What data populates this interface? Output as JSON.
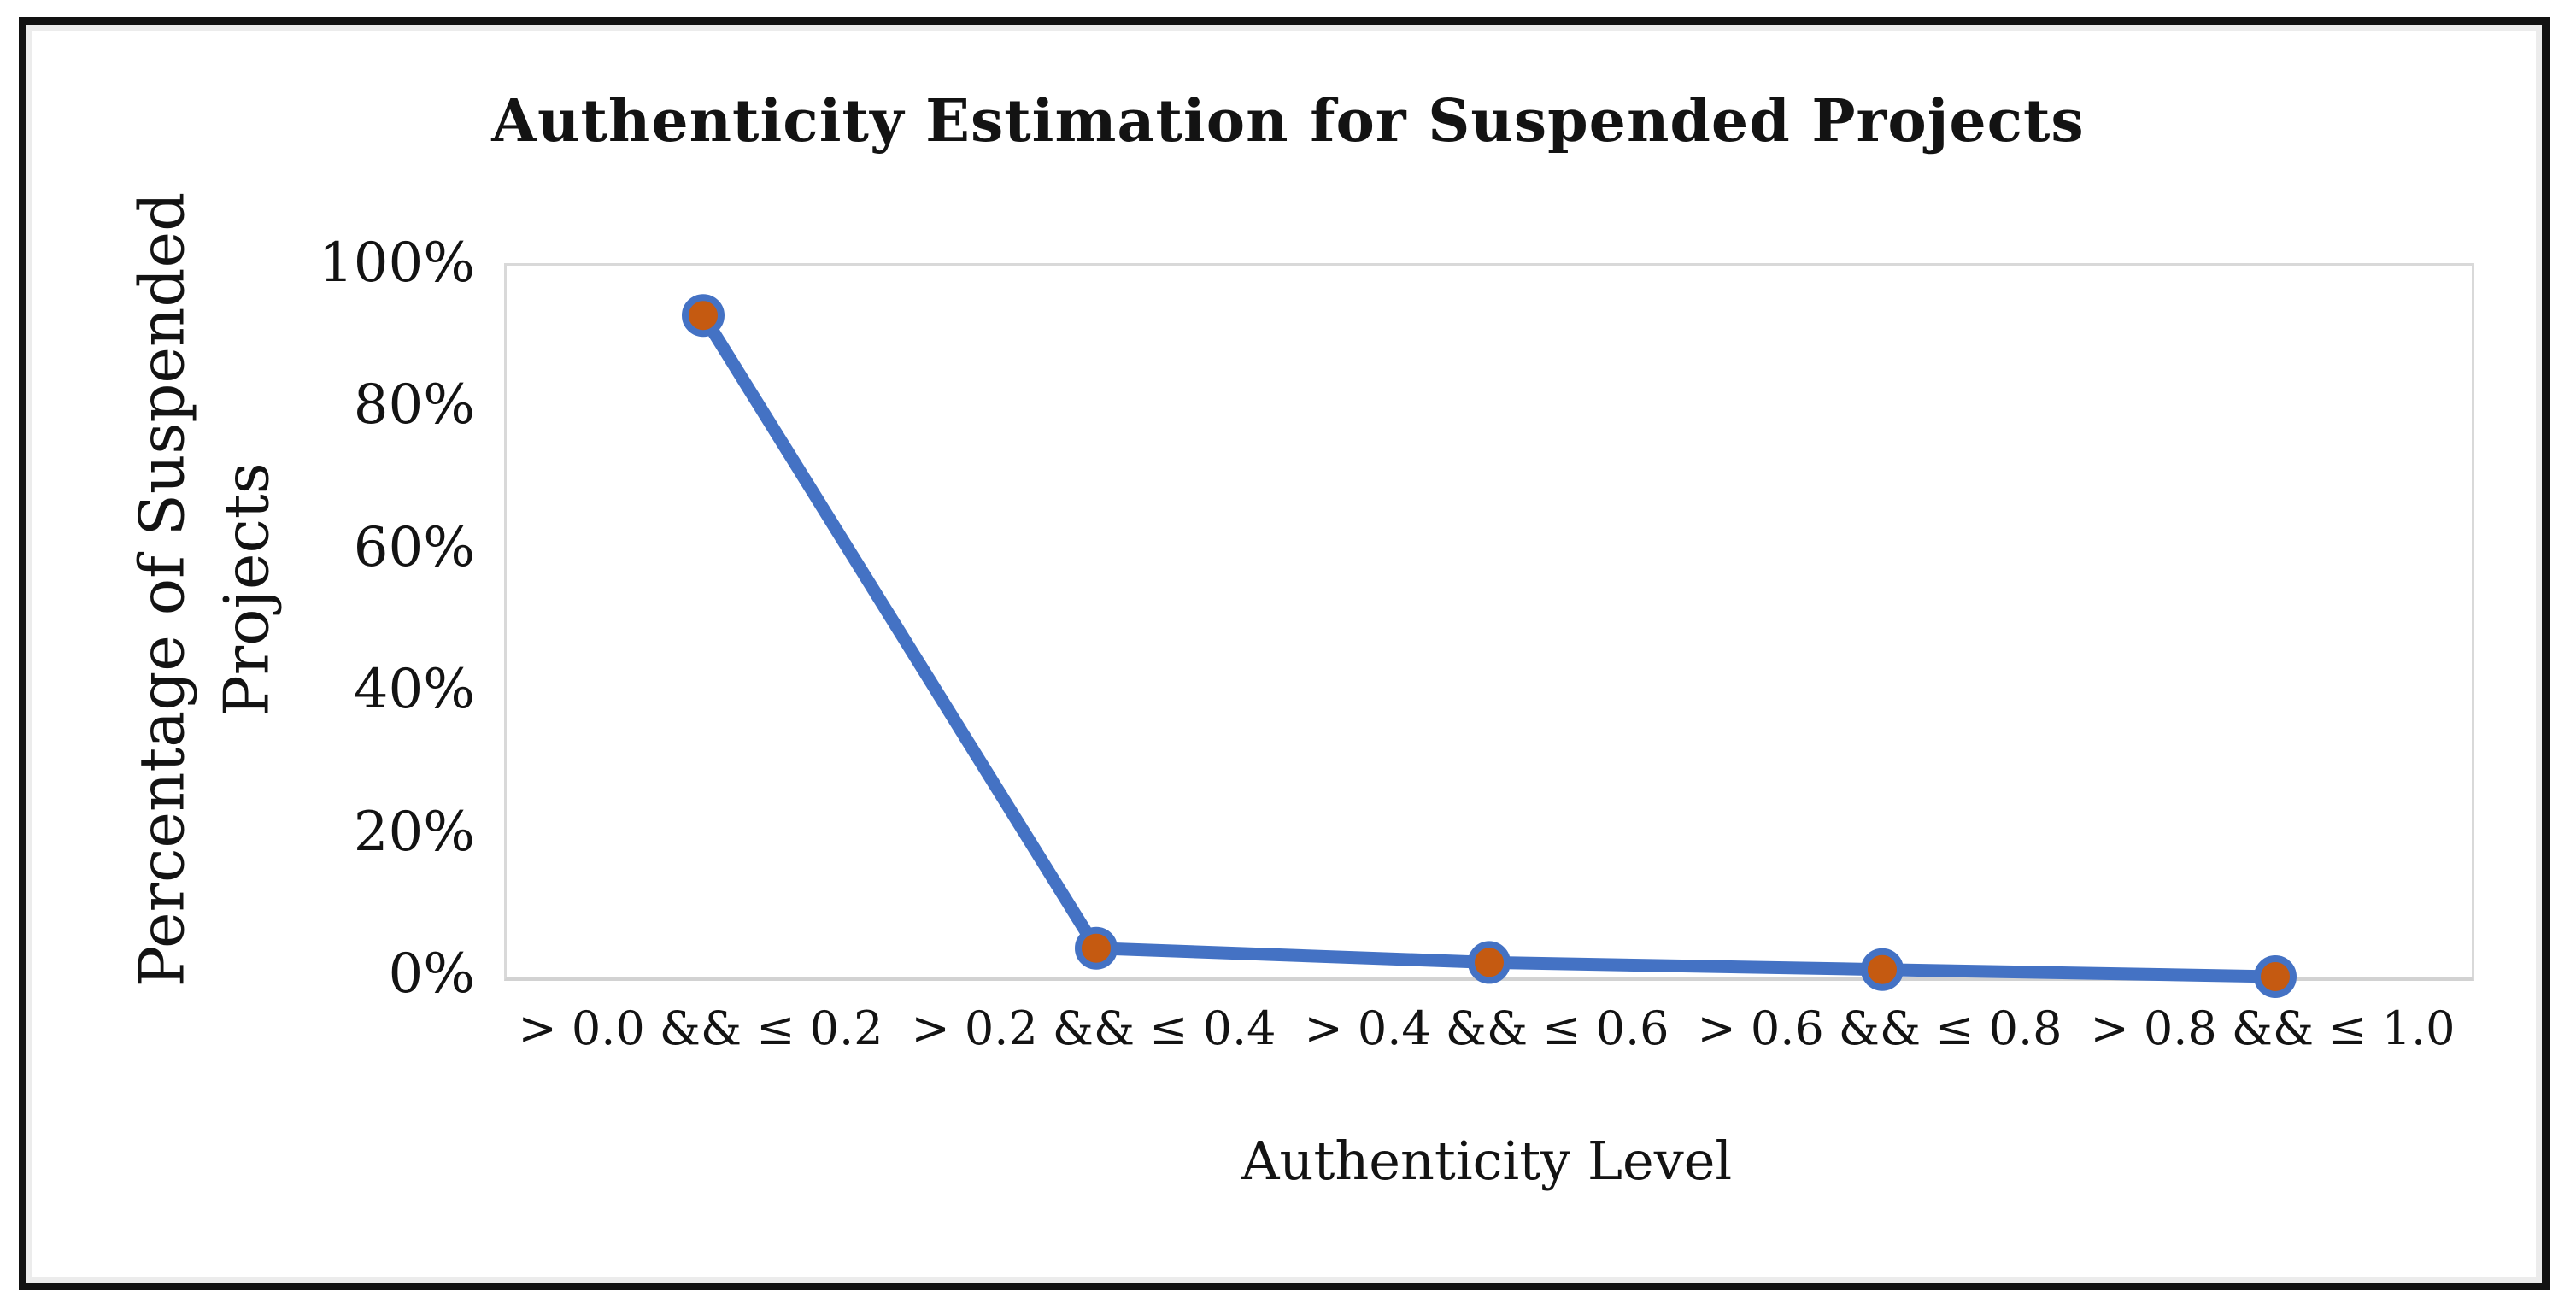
{
  "figure": {
    "title": "Authenticity Estimation for Suspended Projects",
    "x_axis_title": "Authenticity Level",
    "y_axis_title_line1": "Percentage of Suspended",
    "y_axis_title_line2": "Projects"
  },
  "chart_data": {
    "type": "line",
    "title": "Authenticity Estimation for Suspended Projects",
    "xlabel": "Authenticity Level",
    "ylabel": "Percentage of Suspended Projects",
    "categories": [
      "> 0.0 && ≤ 0.2",
      "> 0.2 && ≤ 0.4",
      "> 0.4 && ≤ 0.6",
      "> 0.6 && ≤ 0.8",
      "> 0.8 && ≤ 1.0"
    ],
    "series": [
      {
        "name": "Percentage of Suspended Projects",
        "values": [
          93,
          4,
          2,
          1,
          0
        ]
      }
    ],
    "ylim": [
      0,
      100
    ],
    "y_ticks": [
      "100%",
      "80%",
      "60%",
      "40%",
      "20%",
      "0%"
    ],
    "y_tick_values": [
      100,
      80,
      60,
      40,
      20,
      0
    ],
    "grid": "plot area outlined light gray, no interior gridlines",
    "legend": "none",
    "colors": {
      "line": "#4472C4",
      "marker_fill": "#C55A11",
      "marker_border": "#4472C4",
      "grid": "#D9D9D9",
      "text": "#131313"
    }
  }
}
